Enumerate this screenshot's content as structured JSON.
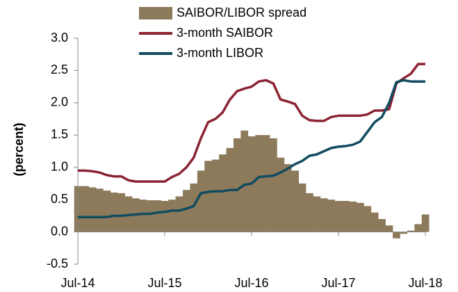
{
  "chart_data": {
    "type": "bar-line",
    "ylabel": "(percent)",
    "categories": [
      "Jul-14",
      null,
      null,
      null,
      null,
      null,
      null,
      null,
      null,
      null,
      null,
      null,
      "Jul-15",
      null,
      null,
      null,
      null,
      null,
      null,
      null,
      null,
      null,
      null,
      null,
      "Jul-16",
      null,
      null,
      null,
      null,
      null,
      null,
      null,
      null,
      null,
      null,
      null,
      "Jul-17",
      null,
      null,
      null,
      null,
      null,
      null,
      null,
      null,
      null,
      null,
      null,
      "Jul-18"
    ],
    "series": [
      {
        "name": "SAIBOR/LIBOR spread",
        "type": "bar",
        "color": "#8c7a5b",
        "values": [
          0.71,
          0.71,
          0.69,
          0.67,
          0.64,
          0.61,
          0.6,
          0.55,
          0.52,
          0.5,
          0.49,
          0.49,
          0.48,
          0.5,
          0.55,
          0.65,
          0.75,
          0.95,
          1.1,
          1.12,
          1.2,
          1.3,
          1.45,
          1.57,
          1.48,
          1.5,
          1.5,
          1.45,
          1.15,
          1.05,
          0.95,
          0.75,
          0.6,
          0.55,
          0.52,
          0.5,
          0.48,
          0.48,
          0.47,
          0.45,
          0.4,
          0.3,
          0.2,
          0.1,
          -0.1,
          -0.03,
          0.02,
          0.12,
          0.27
        ]
      },
      {
        "name": "3-month SAIBOR",
        "type": "line",
        "color": "#8b2332",
        "values": [
          0.95,
          0.95,
          0.94,
          0.92,
          0.88,
          0.86,
          0.86,
          0.8,
          0.78,
          0.78,
          0.78,
          0.78,
          0.78,
          0.85,
          0.9,
          1.0,
          1.15,
          1.45,
          1.7,
          1.75,
          1.85,
          2.05,
          2.18,
          2.22,
          2.25,
          2.33,
          2.35,
          2.3,
          2.05,
          2.02,
          1.98,
          1.8,
          1.73,
          1.72,
          1.72,
          1.78,
          1.8,
          1.8,
          1.8,
          1.8,
          1.82,
          1.88,
          1.88,
          1.9,
          2.3,
          2.38,
          2.45,
          2.6,
          2.6
        ]
      },
      {
        "name": "3-month LIBOR",
        "type": "line",
        "color": "#114b5f",
        "values": [
          0.23,
          0.23,
          0.23,
          0.23,
          0.23,
          0.25,
          0.25,
          0.26,
          0.27,
          0.28,
          0.28,
          0.3,
          0.31,
          0.33,
          0.33,
          0.36,
          0.4,
          0.6,
          0.62,
          0.63,
          0.63,
          0.65,
          0.65,
          0.73,
          0.75,
          0.85,
          0.86,
          0.87,
          0.92,
          0.98,
          1.05,
          1.1,
          1.18,
          1.2,
          1.25,
          1.3,
          1.32,
          1.33,
          1.35,
          1.4,
          1.55,
          1.7,
          1.78,
          2.0,
          2.32,
          2.35,
          2.33,
          2.33,
          2.33
        ]
      }
    ],
    "ylim": [
      -0.5,
      3.0
    ],
    "yticks": [
      -0.5,
      {
        "value": 0,
        "label": "0.0"
      },
      0.5,
      {
        "value": 1,
        "label": "1.0"
      },
      1.5,
      {
        "value": 2,
        "label": "2.0"
      },
      2.5,
      {
        "value": 3,
        "label": "3.0"
      }
    ],
    "legend": "top"
  }
}
